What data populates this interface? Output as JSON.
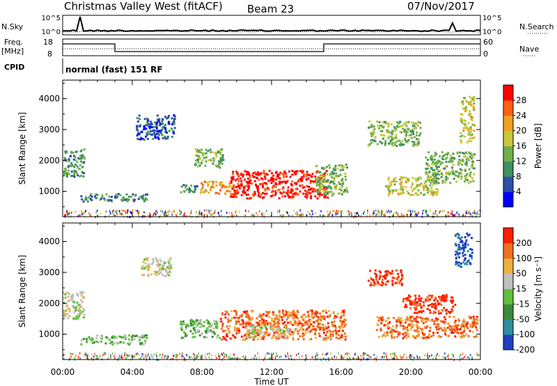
{
  "header": {
    "radar": "Christmas Valley West (fitACF)",
    "beam": "Beam 23",
    "date": "07/Nov/2017"
  },
  "strips": {
    "nsky_label": "N.Sky",
    "nsearch_label": "N.Search",
    "noise_ticks": [
      "10^5",
      "10^0"
    ],
    "freq_label_1": "Freq.",
    "freq_label_2": "[MHz]",
    "freq_ticks": [
      "18",
      "8"
    ],
    "nave_label": "Nave",
    "nave_ticks": [
      "60",
      "0"
    ],
    "cpid_label": "CPID",
    "cpid_text": "normal (fast) 151 RF"
  },
  "chart_data": [
    {
      "type": "heatmap",
      "name": "power",
      "ylabel": "Slant Range [km]",
      "ytick_labels": [
        "1000",
        "2000",
        "3000",
        "4000"
      ],
      "yticks": [
        1000,
        2000,
        3000,
        4000
      ],
      "ylim": [
        180,
        4600
      ],
      "xlim": [
        0,
        24
      ],
      "x_units": "hours UT",
      "colorbar_label": "Power [dB]",
      "colorbar_ticks": [
        "4",
        "8",
        "12",
        "16",
        "20",
        "24",
        "28"
      ],
      "colorbar_range": [
        0,
        32
      ],
      "colors": [
        "#0000ff",
        "#2d4fa8",
        "#3f8f5f",
        "#6fb04a",
        "#c8c83a",
        "#f0a020",
        "#ff6010",
        "#ff0000"
      ],
      "patches": [
        {
          "t0": 6.7,
          "t1": 7.8,
          "r0": 1000,
          "r1": 1250,
          "level": 2
        },
        {
          "t0": 7.8,
          "t1": 9.6,
          "r0": 950,
          "r1": 1350,
          "level": 5
        },
        {
          "t0": 9.6,
          "t1": 15.2,
          "r0": 800,
          "r1": 1700,
          "level": 7
        },
        {
          "t0": 14.5,
          "t1": 16.3,
          "r0": 900,
          "r1": 1900,
          "level": 3
        },
        {
          "t0": 1.0,
          "t1": 4.8,
          "r0": 700,
          "r1": 950,
          "level": 2
        },
        {
          "t0": 0.0,
          "t1": 1.2,
          "r0": 1500,
          "r1": 2400,
          "level": 2
        },
        {
          "t0": 4.2,
          "t1": 6.4,
          "r0": 2700,
          "r1": 3500,
          "level": 1
        },
        {
          "t0": 7.5,
          "t1": 9.2,
          "r0": 1800,
          "r1": 2400,
          "level": 3
        },
        {
          "t0": 18.5,
          "t1": 21.5,
          "r0": 900,
          "r1": 1500,
          "level": 4
        },
        {
          "t0": 20.8,
          "t1": 23.6,
          "r0": 1300,
          "r1": 2300,
          "level": 3
        },
        {
          "t0": 17.5,
          "t1": 20.5,
          "r0": 2500,
          "r1": 3300,
          "level": 3
        },
        {
          "t0": 22.8,
          "t1": 23.6,
          "r0": 2600,
          "r1": 4100,
          "level": 4
        }
      ]
    },
    {
      "type": "heatmap",
      "name": "velocity",
      "ylabel": "Slant Range [km]",
      "ytick_labels": [
        "1000",
        "2000",
        "3000",
        "4000"
      ],
      "yticks": [
        1000,
        2000,
        3000,
        4000
      ],
      "ylim": [
        180,
        4600
      ],
      "xlim": [
        0,
        24
      ],
      "x_units": "hours UT",
      "xtick_labels": [
        "00:00",
        "04:00",
        "08:00",
        "12:00",
        "16:00",
        "20:00",
        "00:00"
      ],
      "xticks": [
        0,
        4,
        8,
        12,
        16,
        20,
        24
      ],
      "xlabel": "Time UT",
      "colorbar_label": "Velocity [m s⁻¹]",
      "colorbar_ticks": [
        "200",
        "100",
        "50",
        "15",
        "-15",
        "-50",
        "-100",
        "-200"
      ],
      "colorbar_range": [
        -250,
        250
      ],
      "colors": [
        "#2040c0",
        "#2f8fa0",
        "#3a8a3a",
        "#60c040",
        "#c0c0c0",
        "#f0b040",
        "#f07020",
        "#ff2000"
      ],
      "patches": [
        {
          "t0": 6.7,
          "t1": 9.0,
          "r0": 900,
          "r1": 1500,
          "level": 3
        },
        {
          "t0": 9.0,
          "t1": 16.2,
          "r0": 850,
          "r1": 1800,
          "level": 6
        },
        {
          "t0": 10.5,
          "t1": 13.0,
          "r0": 900,
          "r1": 1300,
          "level": 4
        },
        {
          "t0": 1.0,
          "t1": 4.8,
          "r0": 700,
          "r1": 1000,
          "level": 3
        },
        {
          "t0": 0.0,
          "t1": 1.2,
          "r0": 1500,
          "r1": 2400,
          "level": 4
        },
        {
          "t0": 4.5,
          "t1": 6.2,
          "r0": 2900,
          "r1": 3500,
          "level": 4
        },
        {
          "t0": 18.0,
          "t1": 23.8,
          "r0": 900,
          "r1": 1600,
          "level": 6
        },
        {
          "t0": 19.5,
          "t1": 22.5,
          "r0": 1700,
          "r1": 2300,
          "level": 7
        },
        {
          "t0": 17.5,
          "t1": 19.5,
          "r0": 2600,
          "r1": 3100,
          "level": 7
        },
        {
          "t0": 22.5,
          "t1": 23.5,
          "r0": 3200,
          "r1": 4300,
          "level": 0
        }
      ]
    }
  ]
}
